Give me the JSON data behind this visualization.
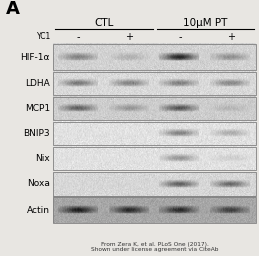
{
  "title_letter": "A",
  "col_header1": "CTL",
  "col_header2": "10μM PT",
  "yc1_label": "YC1",
  "yc1_signs": [
    "-",
    "+",
    "-",
    "+"
  ],
  "row_labels": [
    "HIF-1α",
    "LDHA",
    "MCP1",
    "BNIP3",
    "Nix",
    "Noxa",
    "Actin"
  ],
  "citation_line1": "From Zera K, et al. PLoS One (2017).",
  "citation_line2": "Shown under license agreement via CiteAb",
  "bg_color": "#e8e6e2",
  "panel_bg_light": "#d4d0cc",
  "panel_bg_dark": "#b8b5b0",
  "rows": [
    {
      "label": "HIF-1α",
      "bg": 0.82,
      "bands": [
        0.42,
        0.18,
        0.9,
        0.35
      ]
    },
    {
      "label": "LDHA",
      "bg": 0.85,
      "bands": [
        0.52,
        0.48,
        0.48,
        0.45
      ]
    },
    {
      "label": "MCP1",
      "bg": 0.8,
      "bands": [
        0.58,
        0.3,
        0.65,
        0.12
      ]
    },
    {
      "label": "BNIP3",
      "bg": 0.88,
      "bands": [
        0.05,
        0.05,
        0.5,
        0.28
      ]
    },
    {
      "label": "Nix",
      "bg": 0.88,
      "bands": [
        0.05,
        0.05,
        0.4,
        0.1
      ]
    },
    {
      "label": "Noxa",
      "bg": 0.84,
      "bands": [
        0.05,
        0.05,
        0.62,
        0.58
      ]
    },
    {
      "label": "Actin",
      "bg": 0.65,
      "bands": [
        0.72,
        0.65,
        0.65,
        0.55
      ]
    }
  ]
}
